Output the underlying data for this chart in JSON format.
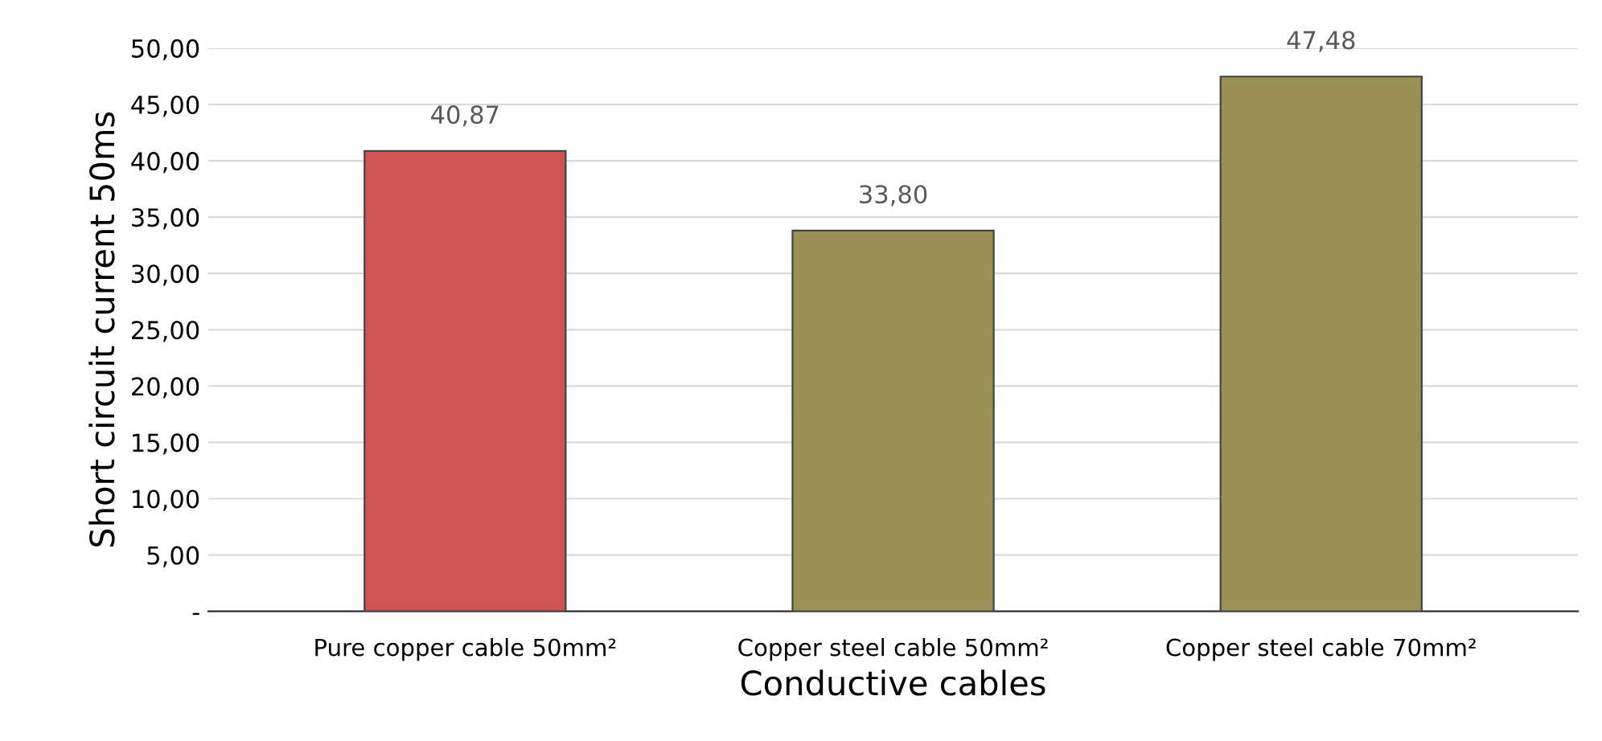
{
  "chart_data": {
    "type": "bar",
    "xlabel": "Conductive cables",
    "ylabel": "Short circuit current 50ms",
    "categories": [
      "Pure copper cable 50mm²",
      "Copper steel cable 50mm²",
      "Copper steel cable 70mm²"
    ],
    "values": [
      40.87,
      33.8,
      47.48
    ],
    "value_labels": [
      "40,87",
      "33,80",
      "47,48"
    ],
    "colors": [
      "#cd5452",
      "#9a9157",
      "#9a9157"
    ],
    "ylim": [
      0,
      50
    ],
    "yticks": [
      {
        "value": 0,
        "label": "-"
      },
      {
        "value": 5,
        "label": "5,00"
      },
      {
        "value": 10,
        "label": "10,00"
      },
      {
        "value": 15,
        "label": "15,00"
      },
      {
        "value": 20,
        "label": "20,00"
      },
      {
        "value": 25,
        "label": "25,00"
      },
      {
        "value": 30,
        "label": "30,00"
      },
      {
        "value": 35,
        "label": "35,00"
      },
      {
        "value": 40,
        "label": "40,00"
      },
      {
        "value": 45,
        "label": "45,00"
      },
      {
        "value": 50,
        "label": "50,00"
      }
    ],
    "grid": "y"
  }
}
